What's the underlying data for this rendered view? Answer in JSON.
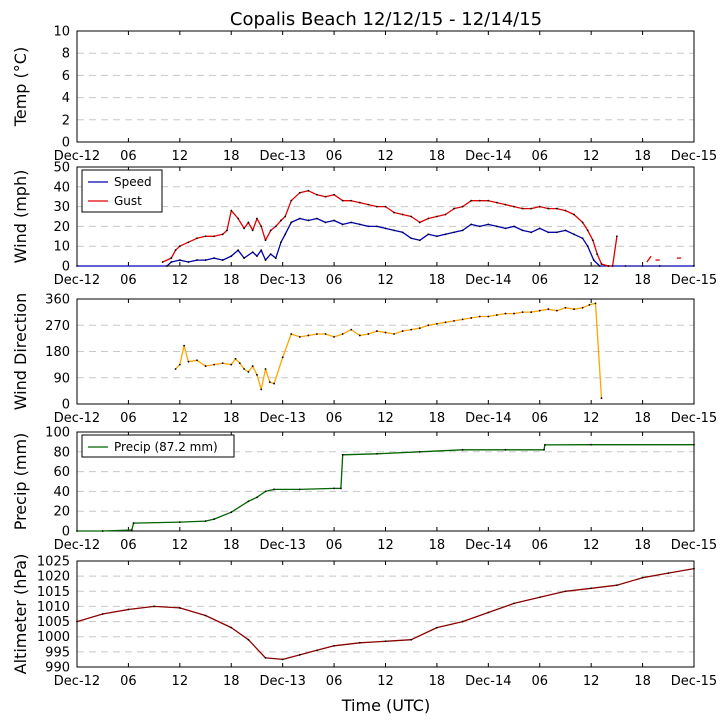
{
  "chart_data": {
    "type": "line",
    "title": "Copalis Beach 12/12/15 - 12/14/15",
    "xlabel": "Time (UTC)",
    "x_unit": "hours since 2015-12-12 00:00 UTC",
    "xlim": [
      0,
      72
    ],
    "xticks": [
      {
        "hour": 0,
        "label": "Dec-12"
      },
      {
        "hour": 6,
        "label": "06"
      },
      {
        "hour": 12,
        "label": "12"
      },
      {
        "hour": 18,
        "label": "18"
      },
      {
        "hour": 24,
        "label": "Dec-13"
      },
      {
        "hour": 30,
        "label": "06"
      },
      {
        "hour": 36,
        "label": "12"
      },
      {
        "hour": 42,
        "label": "18"
      },
      {
        "hour": 48,
        "label": "Dec-14"
      },
      {
        "hour": 54,
        "label": "06"
      },
      {
        "hour": 60,
        "label": "12"
      },
      {
        "hour": 66,
        "label": "18"
      },
      {
        "hour": 72,
        "label": "Dec-15"
      }
    ],
    "panels": [
      {
        "id": "temp",
        "ylabel": "Temp ($^\\circ$C)",
        "ylabel_display": "Temp (°C)",
        "ylim": [
          0,
          10
        ],
        "yticks": [
          0,
          2,
          4,
          6,
          8,
          10
        ],
        "series": []
      },
      {
        "id": "wind",
        "ylabel": "Wind (mph)",
        "ylim": [
          0,
          50
        ],
        "yticks": [
          0,
          10,
          20,
          30,
          40,
          50
        ],
        "legend": [
          "Speed",
          "Gust"
        ],
        "series": [
          {
            "name": "Speed",
            "color": "#0000b0",
            "x": [
              0,
              10.5,
              11,
              12,
              13,
              14,
              15,
              16,
              17,
              18,
              18.8,
              19.5,
              20.5,
              21,
              21.5,
              22,
              22.6,
              23.2,
              23.8,
              24.3,
              25,
              26,
              27,
              28,
              29,
              30,
              31,
              32,
              33,
              34,
              35,
              36,
              37,
              38,
              39,
              40,
              41,
              42,
              43,
              44,
              45,
              46,
              47,
              48,
              49,
              50,
              51,
              52,
              53,
              54,
              55,
              56,
              57,
              58,
              59,
              59.6,
              60.3,
              61,
              62,
              64,
              66,
              68,
              72
            ],
            "y": [
              0,
              0,
              2,
              3,
              2,
              3,
              3,
              4,
              3,
              5,
              8,
              4,
              7,
              5,
              8,
              3,
              6,
              4,
              12,
              16,
              22,
              24,
              23,
              24,
              22,
              23,
              21,
              22,
              21,
              20,
              20,
              19,
              18,
              17,
              14,
              13,
              16,
              15,
              16,
              17,
              18,
              21,
              20,
              21,
              20,
              19,
              20,
              18,
              17,
              19,
              17,
              17,
              18,
              16,
              14,
              10,
              3,
              0,
              0,
              0,
              0,
              0,
              0
            ]
          },
          {
            "name": "Gust",
            "color": "#e00000",
            "x": [
              10,
              11,
              11.5,
              12,
              13,
              14,
              15,
              16,
              17,
              17.5,
              18,
              18.8,
              19.5,
              20,
              20.5,
              21,
              21.5,
              22,
              22.6,
              23.2,
              23.8,
              24.3,
              25,
              26,
              27,
              28,
              29,
              30,
              31,
              32,
              33,
              34,
              35,
              36,
              37,
              38,
              39,
              40,
              41,
              42,
              43,
              44,
              45,
              46,
              47,
              48,
              49,
              50,
              51,
              52,
              53,
              54,
              55,
              56,
              57,
              58,
              59,
              59.6,
              60.2,
              60.7,
              61.2,
              62,
              62.5,
              63
            ],
            "y": [
              2,
              4,
              8,
              10,
              12,
              14,
              15,
              15,
              16,
              18,
              28,
              24,
              19,
              22,
              18,
              24,
              20,
              13,
              18,
              20,
              23,
              25,
              33,
              37,
              38,
              36,
              35,
              36,
              33,
              33,
              32,
              31,
              30,
              30,
              27,
              26,
              25,
              22,
              24,
              25,
              26,
              29,
              30,
              33,
              33,
              33,
              32,
              31,
              30,
              29,
              29,
              30,
              29,
              29,
              28,
              26,
              22,
              18,
              13,
              6,
              1,
              0,
              0,
              15
            ]
          }
        ],
        "gust_tail_segments": [
          [
            66.5,
            2,
            67,
            5
          ],
          [
            67.5,
            3,
            68,
            3
          ],
          [
            70,
            4,
            70.5,
            4
          ]
        ]
      },
      {
        "id": "dir",
        "ylabel": "Wind Direction",
        "ylim": [
          0,
          360
        ],
        "yticks": [
          0,
          90,
          180,
          270,
          360
        ],
        "series": [
          {
            "name": "Direction",
            "color": "#ffa500",
            "x": [
              11.5,
              12,
              12.5,
              13,
              14,
              15,
              16,
              17,
              18,
              18.5,
              19,
              19.5,
              20,
              20.5,
              21,
              21.5,
              22,
              22.5,
              23,
              24,
              25,
              26,
              27,
              28,
              29,
              30,
              31,
              32,
              33,
              34,
              35,
              36,
              37,
              38,
              39,
              40,
              41,
              42,
              43,
              44,
              45,
              46,
              47,
              48,
              49,
              50,
              51,
              52,
              53,
              54,
              55,
              56,
              57,
              58,
              59,
              59.8,
              60.5,
              61.2
            ],
            "y": [
              120,
              135,
              200,
              145,
              150,
              130,
              135,
              140,
              135,
              155,
              140,
              120,
              110,
              130,
              100,
              50,
              120,
              75,
              70,
              160,
              240,
              230,
              235,
              240,
              240,
              230,
              240,
              255,
              235,
              240,
              250,
              245,
              240,
              250,
              255,
              260,
              270,
              275,
              280,
              285,
              290,
              295,
              300,
              300,
              305,
              310,
              310,
              315,
              315,
              320,
              325,
              320,
              330,
              325,
              330,
              340,
              345,
              20
            ]
          }
        ]
      },
      {
        "id": "precip",
        "ylabel": "Precip (mm)",
        "ylim": [
          0,
          100
        ],
        "yticks": [
          0,
          20,
          40,
          60,
          80,
          100
        ],
        "legend": [
          "Precip (87.2 mm)"
        ],
        "series": [
          {
            "name": "Precip (87.2 mm)",
            "color": "#006400",
            "x": [
              0,
              3,
              6.4,
              6.6,
              12,
              15,
              16,
              18,
              20,
              21,
              22,
              23,
              26,
              30,
              30.8,
              31,
              35,
              40,
              45,
              50,
              54.5,
              54.6,
              60,
              72
            ],
            "y": [
              0,
              0,
              1,
              8,
              9,
              10,
              12,
              19,
              30,
              34,
              40,
              42,
              42,
              43,
              43,
              77,
              78,
              80,
              82,
              82,
              82,
              87,
              87.2,
              87.2
            ]
          }
        ]
      },
      {
        "id": "alt",
        "ylabel": "Altimeter (hPa)",
        "ylim": [
          990,
          1025
        ],
        "yticks": [
          990,
          995,
          1000,
          1005,
          1010,
          1015,
          1020,
          1025
        ],
        "series": [
          {
            "name": "Altimeter",
            "color": "#8b0000",
            "x": [
              0,
              3,
              6,
              9,
              12,
              15,
              18,
              20,
              22,
              24,
              26,
              28,
              30,
              33,
              36,
              39,
              42,
              45,
              48,
              51,
              54,
              57,
              60,
              63,
              66,
              69,
              72
            ],
            "y": [
              1005,
              1007.5,
              1009,
              1010,
              1009.5,
              1007,
              1003,
              999,
              993,
              992.5,
              994,
              995.5,
              997,
              998,
              998.5,
              999,
              1003,
              1005,
              1008,
              1011,
              1013,
              1015,
              1016,
              1017,
              1019.5,
              1021,
              1022.5
            ]
          }
        ]
      }
    ]
  }
}
